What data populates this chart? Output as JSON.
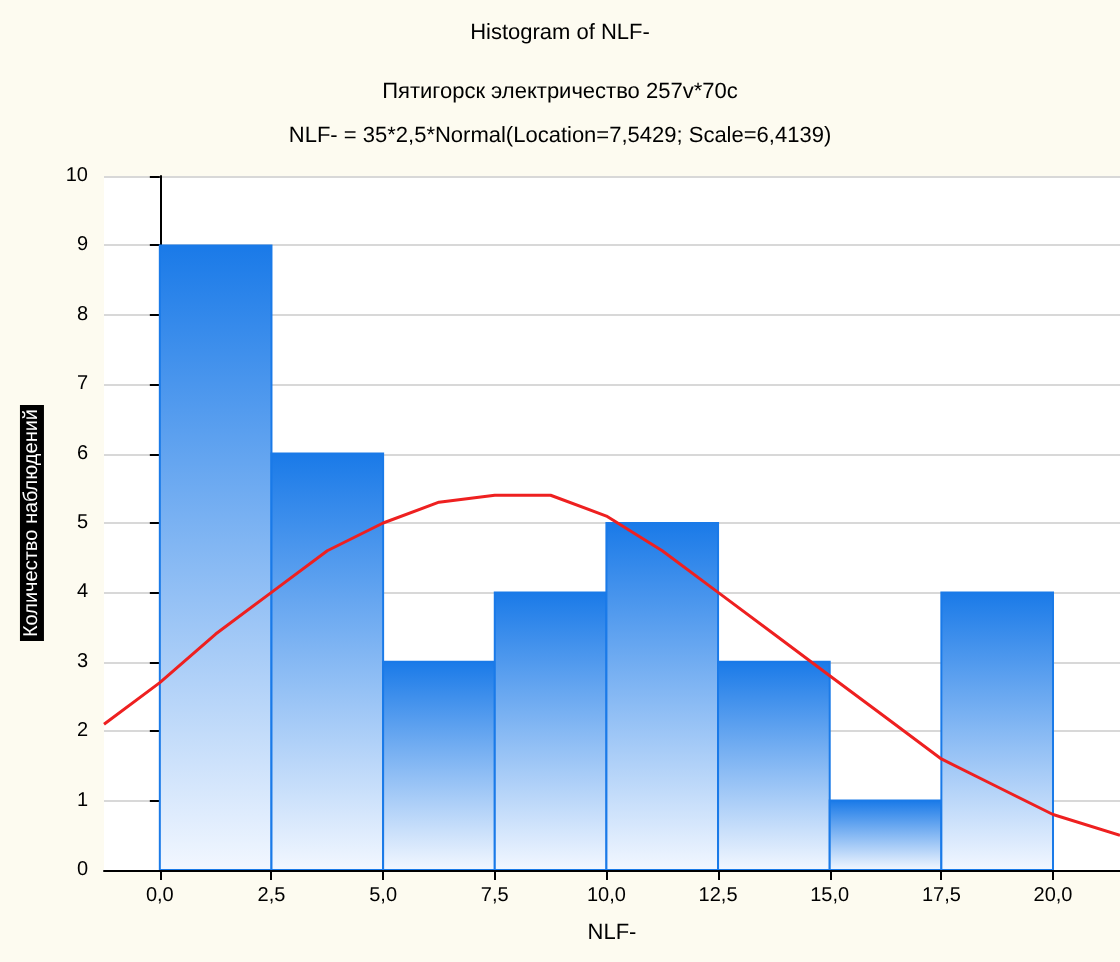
{
  "chart_data": {
    "type": "histogram",
    "title": "Histogram of NLF-",
    "subtitle": "Пятигорск электричество 257v*70c\nNLF- = 35*2,5*Normal(Location=7,5429; Scale=6,4139)",
    "xlabel": "NLF-",
    "ylabel": "Количество наблюдений",
    "series": [
      {
        "color": "#1a7ae8",
        "bins": [
          0,
          2.5,
          5,
          7.5,
          10,
          12.5,
          15,
          17.5,
          20
        ],
        "values": [
          9,
          6,
          3,
          4,
          5,
          3,
          1,
          4
        ]
      },
      {
        "type": "line",
        "color": "#ee2020",
        "x": [
          -1.25,
          0,
          1.25,
          2.5,
          3.75,
          5,
          6.25,
          7.5,
          8.75,
          10,
          11.25,
          12.5,
          13.75,
          15,
          16.25,
          17.5,
          18.75,
          20,
          21.5
        ],
        "values": [
          2.1,
          2.7,
          3.4,
          4.0,
          4.6,
          5.0,
          5.3,
          5.4,
          5.4,
          5.1,
          4.6,
          4.0,
          3.4,
          2.8,
          2.2,
          1.6,
          1.2,
          0.8,
          0.5
        ]
      }
    ],
    "xlim": [
      -1.25,
      21.5
    ],
    "xticks": [
      {
        "value": 0,
        "label": "0,0"
      },
      {
        "value": 2.5,
        "label": "2,5"
      },
      {
        "value": 5,
        "label": "5,0"
      },
      {
        "value": 7.5,
        "label": "7,5"
      },
      {
        "value": 10,
        "label": "10,0"
      },
      {
        "value": 12.5,
        "label": "12,5"
      },
      {
        "value": 15,
        "label": "15,0"
      },
      {
        "value": 17.5,
        "label": "17,5"
      },
      {
        "value": 20,
        "label": "20,0"
      }
    ],
    "ylim": [
      0,
      10
    ],
    "yticks": [
      0,
      1,
      2,
      3,
      4,
      5,
      6,
      7,
      8,
      9,
      10
    ],
    "grid": "y",
    "marker": "none",
    "line_style": "solid"
  }
}
